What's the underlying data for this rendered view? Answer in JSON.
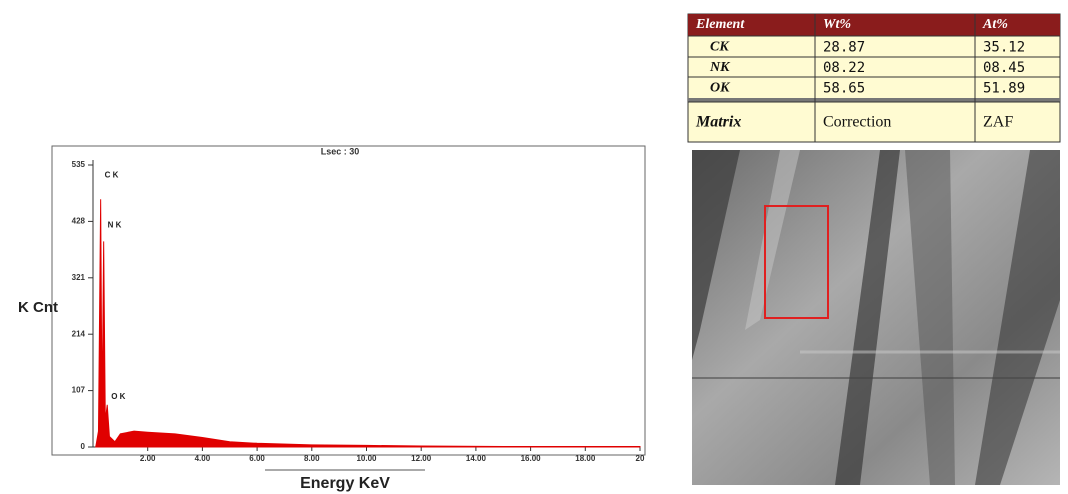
{
  "chart_data": {
    "type": "area",
    "title": "Lsec : 30",
    "y_label": "K Cnt",
    "x_label": "Energy KeV",
    "x": [
      0.1,
      0.2,
      0.28,
      0.33,
      0.39,
      0.45,
      0.52,
      0.6,
      0.8,
      1,
      1.5,
      2,
      3,
      4,
      5,
      6,
      8,
      10,
      12,
      15,
      20
    ],
    "values": [
      0,
      30,
      470,
      60,
      390,
      50,
      80,
      20,
      10,
      25,
      30,
      28,
      25,
      18,
      10,
      7,
      4,
      3,
      2,
      1,
      1
    ],
    "color": "#e00000",
    "xlim": [
      0,
      20
    ],
    "xticks": [
      {
        "value": 2,
        "label": "2.00"
      },
      {
        "value": 4,
        "label": "4.00"
      },
      {
        "value": 6,
        "label": "6.00"
      },
      {
        "value": 8,
        "label": "8.00"
      },
      {
        "value": 10,
        "label": "10.00"
      },
      {
        "value": 12,
        "label": "12.00"
      },
      {
        "value": 14,
        "label": "14.00"
      },
      {
        "value": 16,
        "label": "16.00"
      },
      {
        "value": 18,
        "label": "18.00"
      },
      20
    ],
    "ylim": [
      0,
      535
    ],
    "yticks": [
      0,
      107,
      214,
      321,
      428,
      535
    ],
    "annotations": [
      {
        "text": "C K",
        "x": 0.28,
        "y": 515
      },
      {
        "text": "N K",
        "x": 0.39,
        "y": 420
      },
      {
        "text": "O K",
        "x": 0.52,
        "y": 95
      }
    ]
  },
  "table": {
    "header": [
      "Element",
      "Wt%",
      "At%"
    ],
    "rows": [
      [
        "CK",
        "28.87",
        "35.12"
      ],
      [
        "NK",
        "08.22",
        "08.45"
      ],
      [
        "OK",
        "58.65",
        "51.89"
      ],
      [
        "Matrix",
        "Correction",
        "ZAF"
      ]
    ]
  }
}
